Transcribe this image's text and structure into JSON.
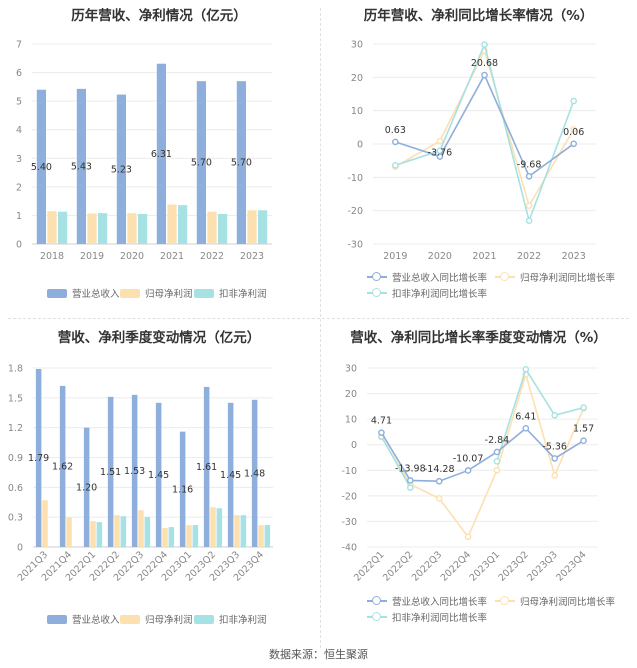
{
  "source": "数据来源：恒生聚源",
  "colors": {
    "revenue": "#8eaedb",
    "parent_profit": "#fde0b0",
    "deducted_profit": "#a6e1e3",
    "revenue_line": "#8eaedb",
    "parent_line": "#fde0b0",
    "deducted_line": "#a6e1e3"
  },
  "legends": {
    "bar": [
      "营业总收入",
      "归母净利润",
      "扣非净利润"
    ],
    "line": [
      "营业总收入同比增长率",
      "归母净利润同比增长率",
      "扣非净利润同比增长率"
    ]
  },
  "chart_data": [
    {
      "type": "bar",
      "title": "历年营收、净利情况（亿元）",
      "categories": [
        "2018",
        "2019",
        "2020",
        "2021",
        "2022",
        "2023"
      ],
      "series": [
        {
          "name": "营业总收入",
          "values": [
            5.4,
            5.43,
            5.23,
            6.31,
            5.7,
            5.7
          ]
        },
        {
          "name": "归母净利润",
          "values": [
            1.15,
            1.07,
            1.08,
            1.38,
            1.13,
            1.18
          ]
        },
        {
          "name": "扣非净利润",
          "values": [
            1.13,
            1.08,
            1.05,
            1.36,
            1.05,
            1.18
          ]
        }
      ],
      "data_labels": [
        "5.40",
        "5.43",
        "5.23",
        "6.31",
        "5.70",
        "5.70"
      ],
      "ylim": [
        0,
        7
      ],
      "yticks": [
        0,
        1,
        2,
        3,
        4,
        5,
        6,
        7
      ],
      "grid": true,
      "legend": "bottom"
    },
    {
      "type": "line",
      "title": "历年营收、净利同比增长率情况（%）",
      "categories": [
        "2019",
        "2020",
        "2021",
        "2022",
        "2023"
      ],
      "series": [
        {
          "name": "营业总收入同比增长率",
          "values": [
            0.63,
            -3.76,
            20.68,
            -9.68,
            0.06
          ]
        },
        {
          "name": "归母净利润同比增长率",
          "values": [
            -6.8,
            0.9,
            28.0,
            -18.5,
            4.4
          ]
        },
        {
          "name": "扣非净利润同比增长率",
          "values": [
            -6.4,
            -2.0,
            29.8,
            -23.0,
            12.9
          ]
        }
      ],
      "data_labels": [
        "0.63",
        "-3.76",
        "20.68",
        "-9.68",
        "0.06"
      ],
      "ylim": [
        -30,
        30
      ],
      "yticks": [
        -30,
        -20,
        -10,
        0,
        10,
        20,
        30
      ],
      "grid": true,
      "legend": "bottom"
    },
    {
      "type": "bar",
      "title": "营收、净利季度变动情况（亿元）",
      "categories": [
        "2021Q3",
        "2021Q4",
        "2022Q1",
        "2022Q2",
        "2022Q3",
        "2022Q4",
        "2023Q1",
        "2023Q2",
        "2023Q3",
        "2023Q4"
      ],
      "series": [
        {
          "name": "营业总收入",
          "values": [
            1.79,
            1.62,
            1.2,
            1.51,
            1.53,
            1.45,
            1.16,
            1.61,
            1.45,
            1.48
          ]
        },
        {
          "name": "归母净利润",
          "values": [
            0.47,
            0.3,
            0.26,
            0.32,
            0.37,
            0.19,
            0.22,
            0.4,
            0.32,
            0.22
          ]
        },
        {
          "name": "扣非净利润",
          "values": [
            null,
            null,
            0.25,
            0.31,
            0.3,
            0.2,
            0.22,
            0.39,
            0.32,
            0.22
          ]
        }
      ],
      "data_labels": [
        "1.79",
        "1.62",
        "1.20",
        "1.51",
        "1.53",
        "1.45",
        "1.16",
        "1.61",
        "1.45",
        "1.48"
      ],
      "ylim": [
        0,
        1.8
      ],
      "yticks": [
        0,
        0.3,
        0.6,
        0.9,
        1.2,
        1.5,
        1.8
      ],
      "ytick_labels": [
        "0",
        "0.3",
        "0.6",
        "0.9",
        "1.2",
        "1.5",
        "1.8"
      ],
      "grid": true,
      "legend": "bottom"
    },
    {
      "type": "line",
      "title": "营收、净利同比增长率季度变动情况（%）",
      "categories": [
        "2022Q1",
        "2022Q2",
        "2022Q3",
        "2022Q4",
        "2023Q1",
        "2023Q2",
        "2023Q3",
        "2023Q4"
      ],
      "series": [
        {
          "name": "营业总收入同比增长率",
          "values": [
            4.71,
            -13.98,
            -14.28,
            -10.07,
            -2.84,
            6.41,
            -5.36,
            1.57
          ]
        },
        {
          "name": "归母净利润同比增长率",
          "values": [
            3.0,
            -15.5,
            -21.0,
            -36.0,
            -10.0,
            27.5,
            -12.0,
            14.2
          ]
        },
        {
          "name": "扣非净利润同比增长率",
          "values": [
            3.2,
            -16.8,
            null,
            null,
            -6.5,
            29.5,
            11.5,
            14.5
          ]
        }
      ],
      "data_labels": [
        "4.71",
        "-13.98",
        "-14.28",
        "-10.07",
        "-2.84",
        "6.41",
        "-5.36",
        "1.57"
      ],
      "ylim": [
        -40,
        30
      ],
      "yticks": [
        -40,
        -30,
        -20,
        -10,
        0,
        10,
        20,
        30
      ],
      "grid": true,
      "legend": "bottom"
    }
  ]
}
